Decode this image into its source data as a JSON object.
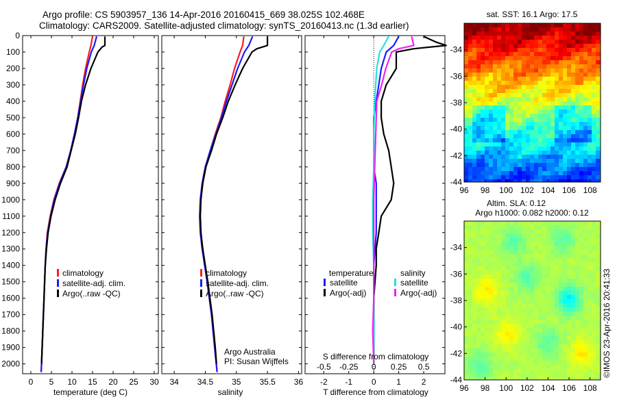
{
  "header": {
    "line1": "Argo profile: CS 5903957_136 14-Apr-2016 20160415_669 38.025S 102.468E",
    "line2": "Climatology: CARS2009. Satellite-adjusted climatology: synTS_20160413.nc (1.3d earlier)"
  },
  "colors": {
    "climatology": "#ff1a1a",
    "satellite": "#1a1aff",
    "argo": "#000000",
    "satellite_s": "#22e0e0",
    "argo_s": "#ee22ee"
  },
  "chart_data": [
    {
      "id": "temperature",
      "type": "line",
      "xlabel": "temperature (deg C)",
      "ylabel": "",
      "xlim": [
        -2,
        31
      ],
      "ylim": [
        2060,
        0
      ],
      "xticks": [
        "0",
        "5",
        "10",
        "15",
        "20",
        "25",
        "30"
      ],
      "yticks": [
        "0",
        "100",
        "200",
        "300",
        "400",
        "500",
        "600",
        "700",
        "800",
        "900",
        "1000",
        "1100",
        "1200",
        "1300",
        "1400",
        "1500",
        "1600",
        "1700",
        "1800",
        "1900",
        "2000"
      ],
      "legend": [
        "climatology",
        "satellite-adj. clim.",
        "Argo(..raw -QC)"
      ],
      "legend_position": "lower-right",
      "series": [
        {
          "name": "climatology",
          "color": "#ff1a1a",
          "depth": [
            5,
            60,
            100,
            200,
            300,
            400,
            500,
            600,
            700,
            800,
            900,
            1000,
            1100,
            1200,
            1300,
            1400,
            1600,
            1800,
            2000,
            2050
          ],
          "values": [
            15.0,
            14.6,
            14.2,
            13.3,
            12.6,
            12.0,
            11.4,
            10.6,
            9.7,
            8.6,
            6.9,
            5.6,
            4.7,
            4.0,
            3.7,
            3.5,
            3.2,
            2.9,
            2.6,
            2.5
          ]
        },
        {
          "name": "satellite-adj. clim.",
          "color": "#1a1aff",
          "depth": [
            5,
            60,
            100,
            200,
            300,
            400,
            500,
            600,
            700,
            800,
            900,
            1000,
            1100,
            1200,
            1300,
            1400,
            1600,
            1800,
            2000,
            2050
          ],
          "values": [
            16.0,
            15.4,
            14.7,
            13.6,
            12.8,
            12.1,
            11.4,
            10.6,
            9.7,
            8.6,
            7.0,
            5.7,
            4.8,
            4.1,
            3.7,
            3.5,
            3.2,
            2.9,
            2.6,
            2.5
          ]
        },
        {
          "name": "Argo(..raw -QC)",
          "color": "#000000",
          "depth": [
            5,
            60,
            70,
            100,
            200,
            300,
            400,
            500,
            600,
            700,
            800,
            900,
            1000,
            1100,
            1200,
            1300,
            1400,
            1600,
            1800,
            2000
          ],
          "values": [
            18.0,
            18.0,
            17.3,
            16.3,
            14.6,
            13.3,
            12.3,
            11.6,
            10.8,
            9.8,
            8.8,
            7.2,
            5.9,
            4.9,
            4.2,
            3.8,
            3.5,
            3.2,
            2.9,
            2.6
          ]
        }
      ]
    },
    {
      "id": "salinity",
      "type": "line",
      "xlabel": "salinity",
      "ylabel": "",
      "xlim": [
        33.8,
        36.05
      ],
      "ylim": [
        2060,
        0
      ],
      "xticks": [
        "34",
        "34.5",
        "35",
        "35.5",
        "36"
      ],
      "legend": [
        "climatology",
        "satellite-adj. clim.",
        "Argo(..raw -QC)"
      ],
      "legend_position": "lower-right",
      "annotation": [
        "Argo Australia",
        "PI: Susan Wijffels"
      ],
      "series": [
        {
          "name": "climatology",
          "color": "#ff1a1a",
          "depth": [
            5,
            60,
            100,
            200,
            300,
            400,
            500,
            600,
            700,
            800,
            900,
            1000,
            1100,
            1200,
            1300,
            1500,
            1700,
            1900,
            2050
          ],
          "values": [
            35.12,
            35.1,
            35.06,
            34.97,
            34.9,
            34.82,
            34.75,
            34.66,
            34.58,
            34.5,
            34.45,
            34.42,
            34.41,
            34.42,
            34.45,
            34.53,
            34.6,
            34.65,
            34.69
          ]
        },
        {
          "name": "satellite-adj. clim.",
          "color": "#1a1aff",
          "depth": [
            5,
            60,
            100,
            200,
            300,
            400,
            500,
            600,
            700,
            800,
            900,
            1000,
            1100,
            1200,
            1300,
            1500,
            1700,
            1900,
            2050
          ],
          "values": [
            35.26,
            35.2,
            35.13,
            35.02,
            34.93,
            34.84,
            34.76,
            34.67,
            34.58,
            34.5,
            34.45,
            34.42,
            34.41,
            34.42,
            34.45,
            34.53,
            34.6,
            34.65,
            34.69
          ]
        },
        {
          "name": "Argo(..raw -QC)",
          "color": "#000000",
          "depth": [
            5,
            60,
            80,
            100,
            200,
            300,
            400,
            500,
            600,
            700,
            800,
            900,
            1000,
            1100,
            1200,
            1300,
            1500,
            1700,
            1900,
            2000
          ],
          "values": [
            35.5,
            35.5,
            35.33,
            35.25,
            35.1,
            34.98,
            34.87,
            34.78,
            34.68,
            34.6,
            34.51,
            34.46,
            34.43,
            34.42,
            34.43,
            34.46,
            34.54,
            34.61,
            34.66,
            34.68
          ]
        }
      ]
    },
    {
      "id": "difference",
      "type": "line",
      "xlabel": "T difference from climatology",
      "xlabel_top": "S difference from climatology",
      "ylabel": "",
      "xlim": [
        -2.75,
        2.85
      ],
      "ylim": [
        2060,
        0
      ],
      "xticks": [
        "-2",
        "-1",
        "0",
        "1",
        "2"
      ],
      "xticks_s": [
        "-0.5",
        "-0.25",
        "0",
        "0.25",
        "0.5"
      ],
      "legend_temperature": {
        "title": "temperature",
        "items": [
          "satellite",
          "Argo(-adj)"
        ]
      },
      "legend_salinity": {
        "title": "salinity",
        "items": [
          "satellite",
          "Argo(-adj)"
        ]
      },
      "series": [
        {
          "name": "temperature satellite",
          "color": "#1a1aff",
          "depth": [
            5,
            60,
            100,
            200,
            300,
            400,
            500,
            600,
            700,
            800,
            900,
            1000,
            1100,
            1200,
            1400,
            1600,
            1800,
            2000
          ],
          "values": [
            1.0,
            0.8,
            0.5,
            0.3,
            0.2,
            0.1,
            0.0,
            0.0,
            0.0,
            0.0,
            0.1,
            0.1,
            0.1,
            0.1,
            0.0,
            0.0,
            0.0,
            0.0
          ]
        },
        {
          "name": "temperature Argo(-adj)",
          "color": "#000000",
          "depth": [
            5,
            40,
            60,
            80,
            100,
            200,
            300,
            400,
            500,
            600,
            700,
            800,
            900,
            1000,
            1050,
            1100,
            1200,
            1300,
            1400,
            1600,
            1800,
            2000
          ],
          "values": [
            2.0,
            2.5,
            2.9,
            1.6,
            0.9,
            0.9,
            0.5,
            0.3,
            0.3,
            0.4,
            0.6,
            0.7,
            0.8,
            0.7,
            0.5,
            0.3,
            0.2,
            0.1,
            0.1,
            0.0,
            0.0,
            0.0
          ]
        },
        {
          "name": "salinity satellite",
          "color": "#22e0e0",
          "depth": [
            5,
            60,
            100,
            200,
            400,
            600,
            800,
            1000,
            1200,
            1400,
            1600,
            1800,
            2000
          ],
          "values": [
            0.15,
            0.1,
            0.06,
            0.03,
            0.01,
            0.0,
            0.0,
            -0.01,
            -0.01,
            0.0,
            0.0,
            0.0,
            0.0
          ]
        },
        {
          "name": "salinity Argo(-adj)",
          "color": "#ee22ee",
          "depth": [
            5,
            60,
            80,
            100,
            200,
            300,
            400,
            600,
            800,
            1000,
            1200,
            1400,
            1600,
            1800,
            2000
          ],
          "values": [
            0.38,
            0.4,
            0.25,
            0.18,
            0.12,
            0.08,
            0.03,
            0.02,
            0.01,
            0.0,
            0.0,
            0.0,
            0.0,
            -0.01,
            0.0
          ]
        }
      ]
    },
    {
      "id": "sst-map",
      "type": "heatmap",
      "title": "sat. SST: 16.1  Argo: 17.5",
      "xlim": [
        96,
        109
      ],
      "ylim": [
        -44,
        -32
      ],
      "xticks": [
        "96",
        "98",
        "100",
        "102",
        "104",
        "106",
        "108"
      ],
      "yticks": [
        "-34",
        "-36",
        "-38",
        "-40",
        "-42",
        "-44"
      ]
    },
    {
      "id": "sla-map",
      "type": "heatmap",
      "title": "Altim. SLA: 0.12",
      "subtitle": "Argo h1000: 0.082 h2000: 0.12",
      "xlim": [
        96,
        109
      ],
      "ylim": [
        -44,
        -32
      ],
      "xticks": [
        "96",
        "98",
        "100",
        "102",
        "104",
        "106",
        "108"
      ],
      "yticks": [
        "-34",
        "-36",
        "-38",
        "-40",
        "-42",
        "-44"
      ]
    }
  ],
  "credit": "©IMOS 23-Apr-2016 20:41:33"
}
